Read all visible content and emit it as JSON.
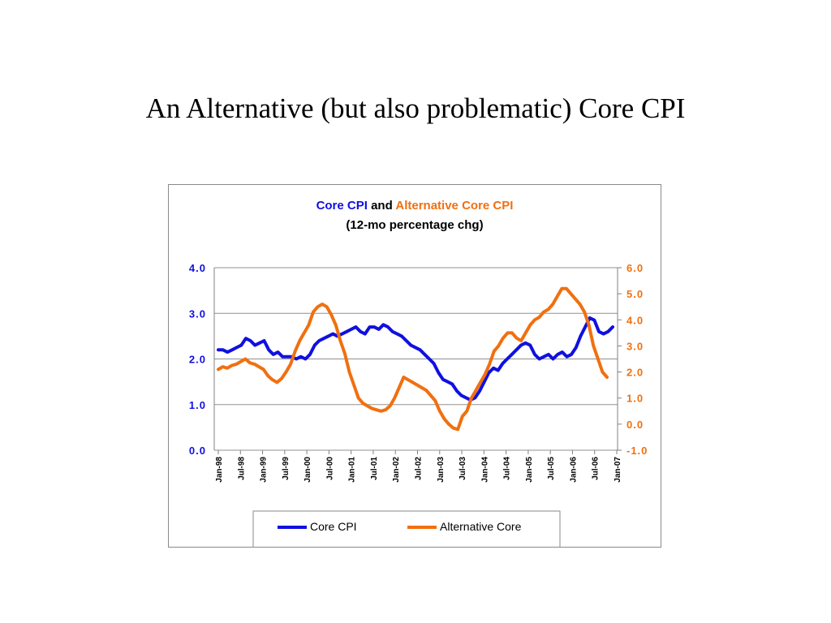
{
  "slide": {
    "title": "An Alternative (but also problematic) Core CPI"
  },
  "chart_data": {
    "type": "line",
    "title_parts": [
      {
        "text": "Core CPI",
        "color": "#1010e0"
      },
      {
        "text": " and ",
        "color": "#000000"
      },
      {
        "text": "Alternative Core CPI",
        "color": "#f07010"
      }
    ],
    "subtitle": "(12-mo percentage chg)",
    "x_tick_labels": [
      "Jan-98",
      "Jul-98",
      "Jan-99",
      "Jul-99",
      "Jan-00",
      "Jul-00",
      "Jan-01",
      "Jul-01",
      "Jan-02",
      "Jul-02",
      "Jan-03",
      "Jul-03",
      "Jan-04",
      "Jul-04",
      "Jan-05",
      "Jul-05",
      "Jan-06",
      "Jul-06",
      "Jan-07"
    ],
    "y_left": {
      "ticks": [
        "0.0",
        "1.0",
        "2.0",
        "3.0",
        "4.0"
      ],
      "min": 0,
      "max": 4,
      "color": "#1010e0"
    },
    "y_right": {
      "ticks": [
        "-1.0",
        "0.0",
        "1.0",
        "2.0",
        "3.0",
        "4.0",
        "5.0",
        "6.0"
      ],
      "min": -1,
      "max": 6,
      "color": "#f07010"
    },
    "grid": "horizontal",
    "legend_position": "bottom",
    "series": [
      {
        "name": "Core CPI",
        "axis": "left",
        "color": "#1010e0",
        "values": [
          2.2,
          2.2,
          2.15,
          2.2,
          2.25,
          2.3,
          2.45,
          2.4,
          2.3,
          2.35,
          2.4,
          2.2,
          2.1,
          2.15,
          2.05,
          2.05,
          2.05,
          2.0,
          2.05,
          2.0,
          2.1,
          2.3,
          2.4,
          2.45,
          2.5,
          2.55,
          2.5,
          2.55,
          2.6,
          2.65,
          2.7,
          2.6,
          2.55,
          2.7,
          2.7,
          2.65,
          2.75,
          2.7,
          2.6,
          2.55,
          2.5,
          2.4,
          2.3,
          2.25,
          2.2,
          2.1,
          2.0,
          1.9,
          1.7,
          1.55,
          1.5,
          1.45,
          1.3,
          1.2,
          1.15,
          1.1,
          1.15,
          1.3,
          1.5,
          1.7,
          1.8,
          1.75,
          1.9,
          2.0,
          2.1,
          2.2,
          2.3,
          2.35,
          2.3,
          2.1,
          2.0,
          2.05,
          2.1,
          2.0,
          2.1,
          2.15,
          2.05,
          2.1,
          2.25,
          2.5,
          2.7,
          2.9,
          2.85,
          2.6,
          2.55,
          2.6,
          2.7
        ]
      },
      {
        "name": "Alternative Core",
        "axis": "right",
        "color": "#f07010",
        "values": [
          2.1,
          2.2,
          2.15,
          2.25,
          2.3,
          2.4,
          2.5,
          2.35,
          2.3,
          2.2,
          2.1,
          1.85,
          1.7,
          1.6,
          1.75,
          2.0,
          2.3,
          2.8,
          3.2,
          3.5,
          3.8,
          4.3,
          4.5,
          4.6,
          4.5,
          4.2,
          3.8,
          3.2,
          2.7,
          2.0,
          1.5,
          1.0,
          0.8,
          0.7,
          0.6,
          0.55,
          0.5,
          0.55,
          0.7,
          1.0,
          1.4,
          1.8,
          1.7,
          1.6,
          1.5,
          1.4,
          1.3,
          1.1,
          0.9,
          0.5,
          0.2,
          0.0,
          -0.15,
          -0.2,
          0.3,
          0.5,
          1.0,
          1.3,
          1.6,
          1.9,
          2.3,
          2.8,
          3.0,
          3.3,
          3.5,
          3.5,
          3.3,
          3.2,
          3.5,
          3.8,
          4.0,
          4.1,
          4.3,
          4.4,
          4.6,
          4.9,
          5.2,
          5.2,
          5.0,
          4.8,
          4.6,
          4.3,
          3.8,
          3.0,
          2.5,
          2.0,
          1.8
        ]
      }
    ]
  }
}
